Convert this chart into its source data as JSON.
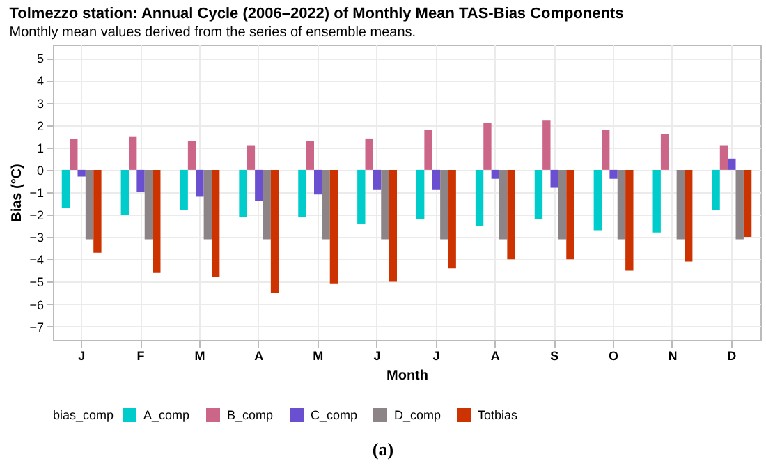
{
  "chart_data": {
    "type": "bar",
    "title": "Tolmezzo station: Annual Cycle (2006–2022) of Monthly Mean TAS-Bias Components",
    "subtitle": "Monthly mean values derived from the series of ensemble means.",
    "xlabel": "Month",
    "ylabel": "Bias (°C)",
    "legend_title": "bias_comp",
    "legend": "bottom",
    "grid": true,
    "categories": [
      "J",
      "F",
      "M",
      "A",
      "M",
      "J",
      "J",
      "A",
      "S",
      "O",
      "N",
      "D"
    ],
    "ylim": [
      -7.6,
      5.6
    ],
    "yticks": [
      -7,
      -6,
      -5,
      -4,
      -3,
      -2,
      -1,
      0,
      1,
      2,
      3,
      4,
      5
    ],
    "series": [
      {
        "name": "A_comp",
        "color": "#00cccc",
        "values": [
          -1.7,
          -2.0,
          -1.8,
          -2.1,
          -2.1,
          -2.4,
          -2.2,
          -2.5,
          -2.2,
          -2.7,
          -2.8,
          -1.8
        ]
      },
      {
        "name": "B_comp",
        "color": "#cc6688",
        "values": [
          1.4,
          1.5,
          1.3,
          1.1,
          1.3,
          1.4,
          1.8,
          2.1,
          2.2,
          1.8,
          1.6,
          1.1
        ]
      },
      {
        "name": "C_comp",
        "color": "#6a4fd0",
        "values": [
          -0.3,
          -1.0,
          -1.2,
          -1.4,
          -1.1,
          -0.9,
          -0.9,
          -0.4,
          -0.8,
          -0.4,
          0,
          0.5
        ]
      },
      {
        "name": "D_comp",
        "color": "#8c8486",
        "values": [
          -3.1,
          -3.1,
          -3.1,
          -3.1,
          -3.1,
          -3.1,
          -3.1,
          -3.1,
          -3.1,
          -3.1,
          -3.1,
          -3.1
        ]
      },
      {
        "name": "Totbias",
        "color": "#cc3300",
        "values": [
          -3.7,
          -4.6,
          -4.8,
          -5.5,
          -5.1,
          -5.0,
          -4.4,
          -4.0,
          -4.0,
          -4.5,
          -4.1,
          -3.0
        ]
      }
    ],
    "annotations": [
      "(a)"
    ]
  }
}
